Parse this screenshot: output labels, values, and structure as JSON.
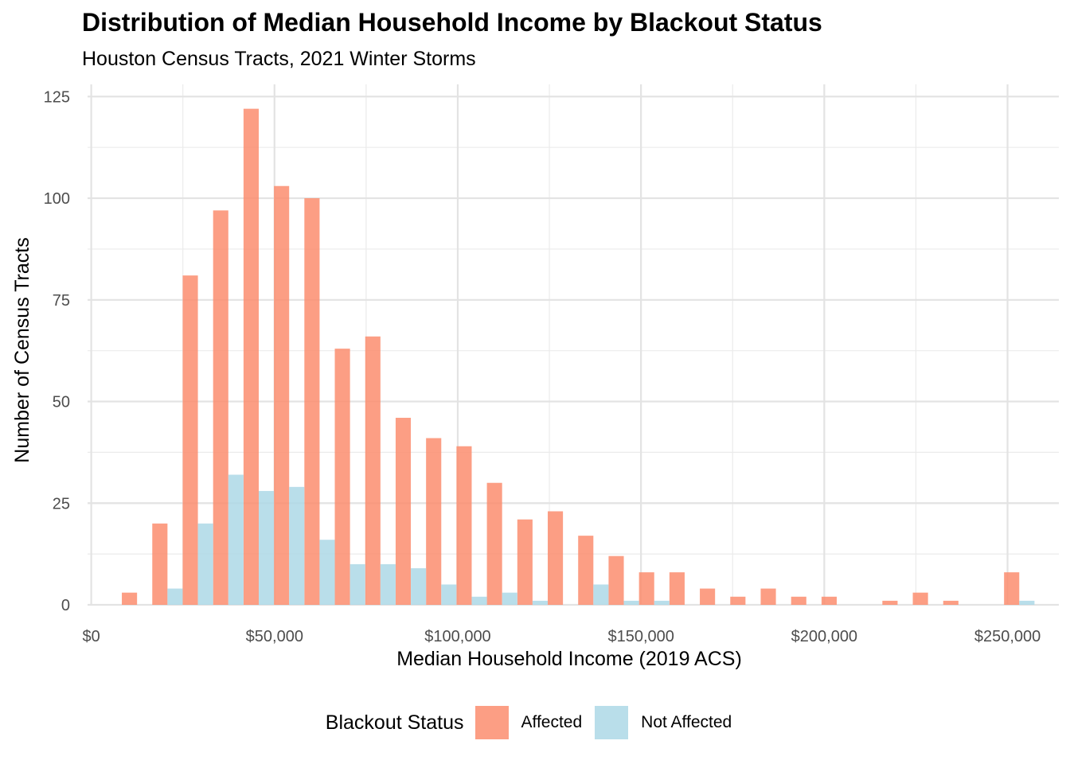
{
  "chart_data": {
    "type": "bar",
    "title": "Distribution of Median Household Income by Blackout Status",
    "subtitle": "Houston Census Tracts, 2021 Winter Storms",
    "xlabel": "Median Household Income (2019 ACS)",
    "ylabel": "Number of Census Tracts",
    "xlim": [
      -1000,
      264000
    ],
    "ylim": [
      0,
      128
    ],
    "x_ticks": [
      {
        "value": 0,
        "label": "$0"
      },
      {
        "value": 50000,
        "label": "$50,000"
      },
      {
        "value": 100000,
        "label": "$100,000"
      },
      {
        "value": 150000,
        "label": "$150,000"
      },
      {
        "value": 200000,
        "label": "$200,000"
      },
      {
        "value": 250000,
        "label": "$250,000"
      }
    ],
    "y_ticks": [
      {
        "value": 0,
        "label": "0"
      },
      {
        "value": 25,
        "label": "25"
      },
      {
        "value": 50,
        "label": "50"
      },
      {
        "value": 75,
        "label": "75"
      },
      {
        "value": 100,
        "label": "100"
      },
      {
        "value": 125,
        "label": "125"
      }
    ],
    "bin_width": 8300,
    "bin_centers": [
      12500,
      20800,
      29100,
      37400,
      45700,
      54000,
      62300,
      70600,
      78900,
      87200,
      95500,
      103800,
      112100,
      120400,
      128700,
      137000,
      145300,
      153600,
      161900,
      170200,
      178500,
      186800,
      195100,
      203400,
      211700,
      220000,
      228300,
      236600,
      244900,
      253200
    ],
    "grid": true,
    "legend_position": "bottom",
    "legend_title": "Blackout Status",
    "series": [
      {
        "name": "Affected",
        "color": "#FC8D6F",
        "values": [
          3,
          20,
          81,
          97,
          122,
          103,
          100,
          63,
          66,
          46,
          41,
          39,
          30,
          21,
          23,
          17,
          12,
          8,
          8,
          4,
          2,
          4,
          2,
          2,
          0,
          1,
          3,
          1,
          0,
          8
        ]
      },
      {
        "name": "Not Affected",
        "color": "#ADD8E6",
        "values": [
          0,
          4,
          20,
          32,
          28,
          29,
          16,
          10,
          10,
          9,
          5,
          2,
          3,
          1,
          0,
          5,
          1,
          1,
          0,
          0,
          0,
          0,
          0,
          0,
          0,
          0,
          0,
          0,
          0,
          1
        ]
      }
    ]
  }
}
